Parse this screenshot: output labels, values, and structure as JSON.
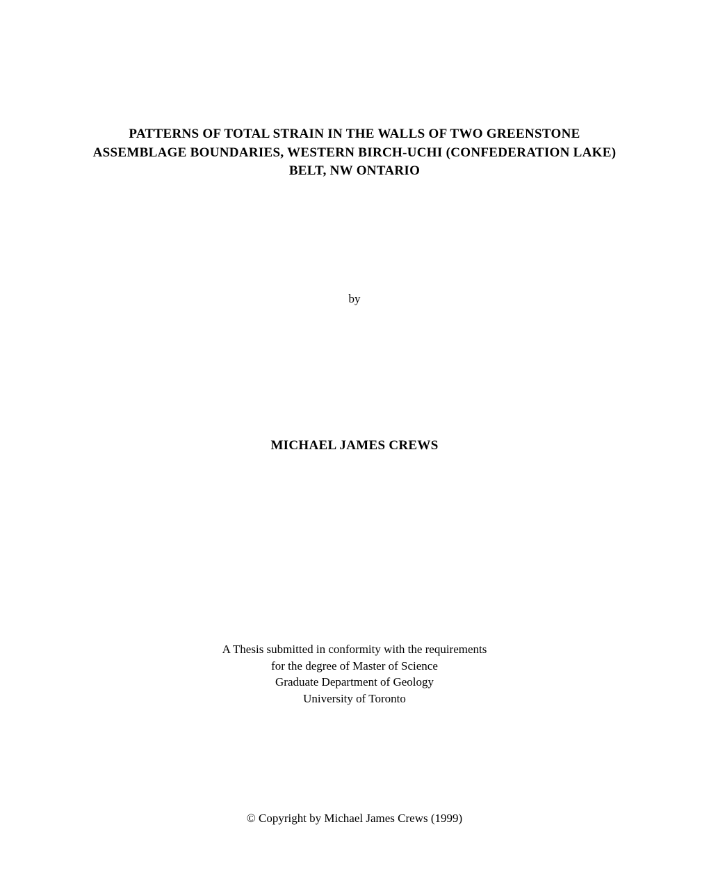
{
  "title_line1": "PATTERNS OF TOTAL STRAIN IN THE WALLS OF TWO GREENSTONE",
  "title_line2": "ASSEMBLAGE BOUNDARIES, WESTERN BIRCH-UCHI (CONFEDERATION LAKE)",
  "title_line3": "BELT, NW ONTARIO",
  "by": "by",
  "author": "MICHAEL JAMES CREWS",
  "thesis_line1": "A Thesis submitted in conformity with the requirements",
  "thesis_line2": "for the degree of Master of Science",
  "thesis_line3": "Graduate Department of Geology",
  "thesis_line4": "University of Toronto",
  "copyright": "© Copyright by Michael James Crews (1999)",
  "colors": {
    "background": "#ffffff",
    "text": "#000000"
  },
  "typography": {
    "title_fontsize": 19,
    "title_fontweight": "bold",
    "body_fontsize": 17,
    "author_fontsize": 19,
    "author_fontweight": "bold",
    "font_family": "Times New Roman"
  }
}
